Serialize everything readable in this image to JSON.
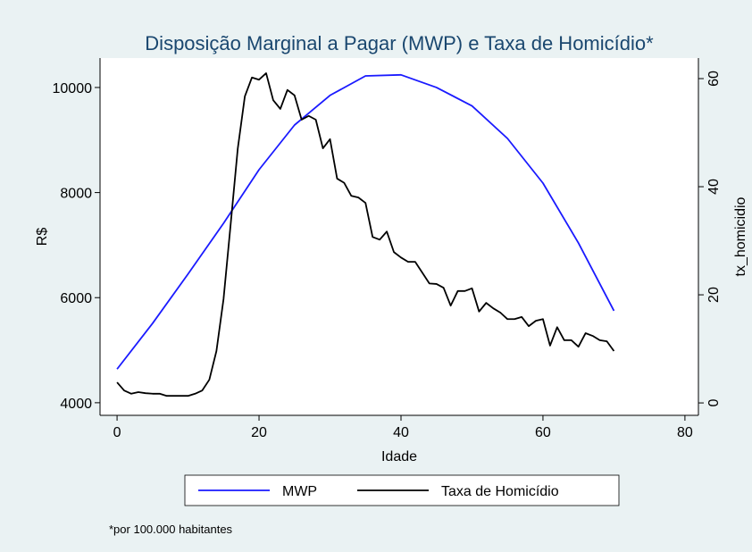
{
  "chart_data": {
    "type": "line",
    "title": "Disposição Marginal a Pagar (MWP) e Taxa de Homicídio*",
    "xlabel": "Idade",
    "ylabel": "R$",
    "y2label": "tx_homicidio",
    "note": "*por 100.000 habitantes",
    "xlim": [
      -2.4,
      81.9
    ],
    "xticks": [
      0,
      20,
      40,
      60,
      80
    ],
    "ylim": [
      3760,
      10560
    ],
    "yticks": [
      4000,
      6000,
      8000,
      10000
    ],
    "y2lim": [
      -2.3,
      63.8
    ],
    "y2ticks": [
      0,
      20,
      40,
      60
    ],
    "legend": "bottom",
    "series": [
      {
        "name": "MWP",
        "color": "#1a1aff",
        "axis": "y",
        "x": [
          0,
          5,
          10,
          15,
          20,
          25,
          30,
          35,
          40,
          45,
          50,
          55,
          60,
          65,
          70
        ],
        "values": [
          4640,
          5510,
          6450,
          7415,
          8435,
          9285,
          9850,
          10220,
          10240,
          10000,
          9650,
          9030,
          8180,
          7040,
          5750
        ]
      },
      {
        "name": "Taxa de Homicídio",
        "color": "#000000",
        "axis": "y2",
        "x": [
          0,
          1,
          2,
          3,
          4,
          5,
          6,
          7,
          8,
          9,
          10,
          11,
          12,
          13,
          14,
          15,
          16,
          17,
          18,
          19,
          20,
          21,
          22,
          23,
          24,
          25,
          26,
          27,
          28,
          29,
          30,
          31,
          32,
          33,
          34,
          35,
          36,
          37,
          38,
          39,
          40,
          41,
          42,
          43,
          44,
          45,
          46,
          47,
          48,
          49,
          50,
          51,
          52,
          53,
          54,
          55,
          56,
          57,
          58,
          59,
          60,
          61,
          62,
          63,
          64,
          65,
          66,
          67,
          68,
          69,
          70
        ],
        "values": [
          3.8,
          2.3,
          1.7,
          2.0,
          1.8,
          1.7,
          1.7,
          1.3,
          1.3,
          1.3,
          1.3,
          1.7,
          2.3,
          4.3,
          9.6,
          19.2,
          33,
          47,
          56.7,
          60.2,
          59.8,
          61,
          56,
          54.4,
          57.9,
          56.9,
          52.4,
          53.1,
          52.4,
          47.1,
          48.8,
          41.5,
          40.7,
          38.3,
          38,
          37,
          30.7,
          30.2,
          31.7,
          27.9,
          26.9,
          26.1,
          26.1,
          24.1,
          22.1,
          22,
          21.3,
          18,
          20.7,
          20.7,
          21.2,
          16.9,
          18.5,
          17.5,
          16.7,
          15.5,
          15.5,
          15.9,
          14.2,
          15.2,
          15.5,
          10.6,
          14,
          11.6,
          11.6,
          10.4,
          12.9,
          12.4,
          11.6,
          11.4,
          9.6
        ]
      }
    ]
  }
}
